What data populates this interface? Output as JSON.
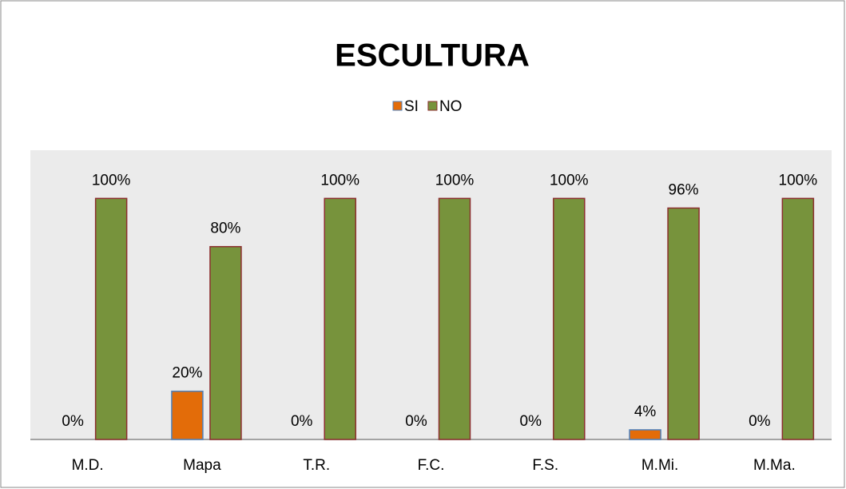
{
  "chart_data": {
    "type": "bar",
    "title": "ESCULTURA",
    "categories": [
      "M.D.",
      "Mapa",
      "T.R.",
      "F.C.",
      "F.S.",
      "M.Mi.",
      "M.Ma."
    ],
    "series": [
      {
        "name": "SI",
        "color": "#e36c09",
        "values": [
          0,
          20,
          0,
          0,
          0,
          4,
          0
        ],
        "value_labels": [
          "0%",
          "20%",
          "0%",
          "0%",
          "0%",
          "4%",
          "0%"
        ]
      },
      {
        "name": "NO",
        "color": "#77933c",
        "values": [
          100,
          80,
          100,
          100,
          100,
          96,
          100
        ],
        "value_labels": [
          "100%",
          "80%",
          "100%",
          "100%",
          "100%",
          "96%",
          "100%"
        ]
      }
    ],
    "ylim": [
      0,
      120
    ],
    "legend": "top"
  }
}
